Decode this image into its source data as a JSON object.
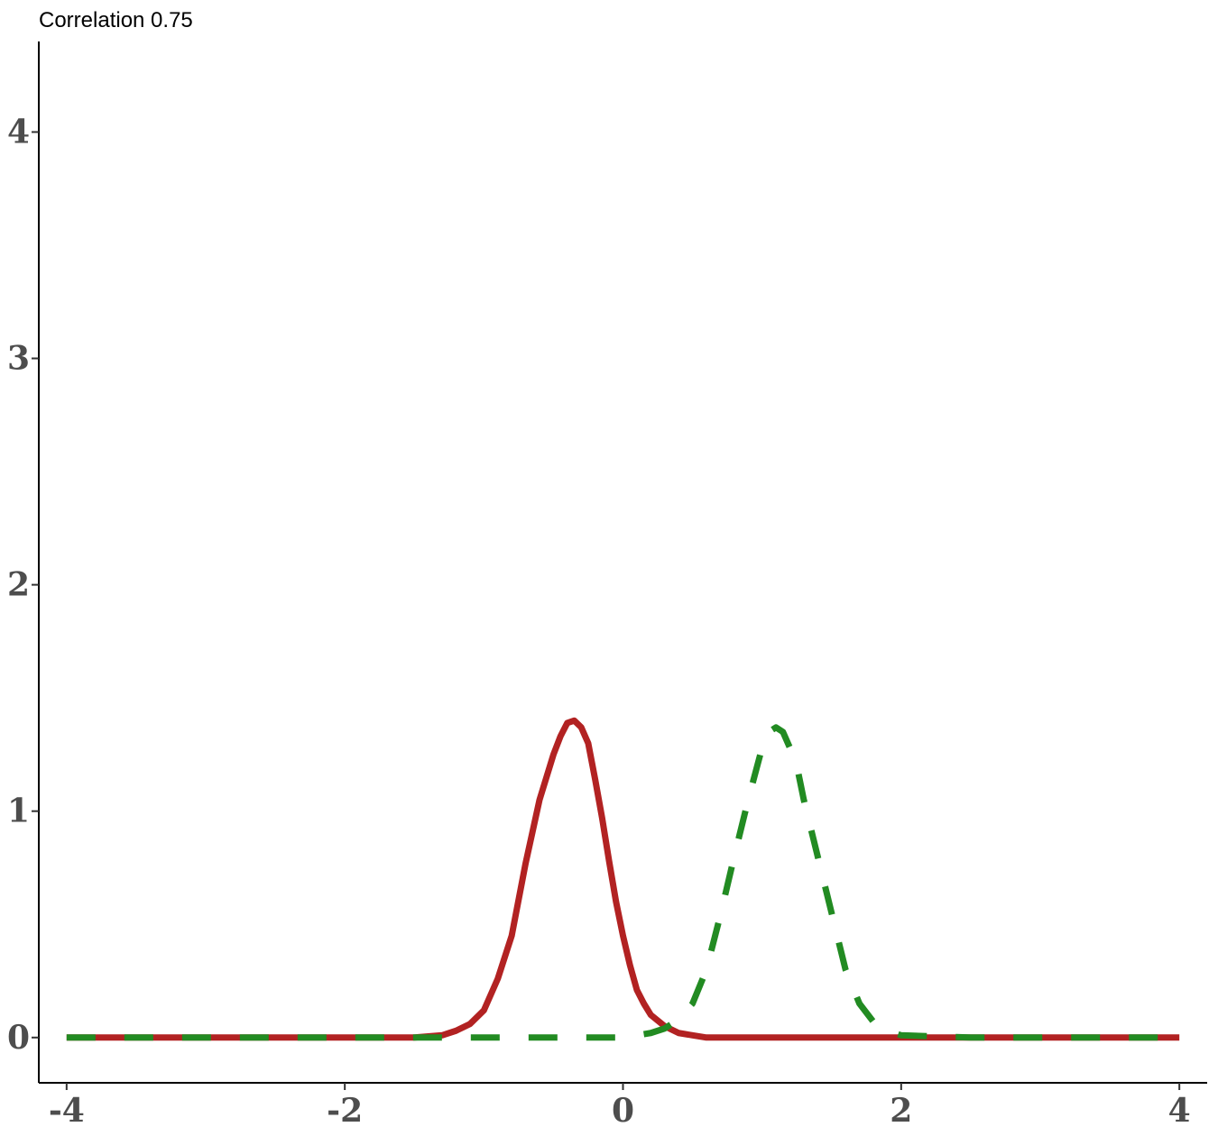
{
  "chart_data": {
    "type": "line",
    "title": "Correlation 0.75",
    "xlabel": "",
    "ylabel": "",
    "xlim": [
      -4.2,
      4.2
    ],
    "ylim": [
      -0.2,
      4.4
    ],
    "x_ticks": [
      -4,
      -2,
      0,
      2,
      4
    ],
    "x_tick_labels": [
      "-4",
      "-2",
      "0",
      "2",
      "4"
    ],
    "y_ticks": [
      0,
      1,
      2,
      3,
      4
    ],
    "y_tick_labels": [
      "0",
      "1",
      "2",
      "3",
      "4"
    ],
    "grid": false,
    "legend": "none",
    "series": [
      {
        "color": "#b22222",
        "line_style": "solid",
        "x": [
          -4.0,
          -3.0,
          -2.0,
          -1.5,
          -1.3,
          -1.2,
          -1.1,
          -1.0,
          -0.9,
          -0.8,
          -0.7,
          -0.6,
          -0.5,
          -0.45,
          -0.4,
          -0.35,
          -0.3,
          -0.25,
          -0.2,
          -0.15,
          -0.1,
          -0.05,
          0.0,
          0.05,
          0.1,
          0.15,
          0.2,
          0.3,
          0.4,
          0.5,
          0.6,
          0.7,
          0.8,
          1.0,
          2.0,
          3.0,
          4.0
        ],
        "y": [
          0.0,
          0.0,
          0.0,
          0.0,
          0.01,
          0.03,
          0.06,
          0.12,
          0.26,
          0.45,
          0.77,
          1.05,
          1.25,
          1.33,
          1.39,
          1.4,
          1.37,
          1.3,
          1.14,
          0.97,
          0.78,
          0.6,
          0.45,
          0.32,
          0.21,
          0.15,
          0.1,
          0.05,
          0.02,
          0.01,
          0.0,
          0.0,
          0.0,
          0.0,
          0.0,
          0.0,
          0.0
        ]
      },
      {
        "color": "#228b22",
        "line_style": "dashed",
        "x": [
          -4.0,
          -3.0,
          -2.0,
          -1.0,
          0.0,
          0.1,
          0.2,
          0.3,
          0.4,
          0.5,
          0.6,
          0.7,
          0.8,
          0.9,
          1.0,
          1.05,
          1.1,
          1.15,
          1.2,
          1.25,
          1.3,
          1.4,
          1.5,
          1.6,
          1.7,
          1.8,
          1.9,
          2.0,
          2.5,
          3.0,
          4.0
        ],
        "y": [
          0.0,
          0.0,
          0.0,
          0.0,
          0.0,
          0.01,
          0.02,
          0.04,
          0.08,
          0.15,
          0.3,
          0.54,
          0.8,
          1.05,
          1.28,
          1.35,
          1.37,
          1.35,
          1.28,
          1.2,
          1.05,
          0.8,
          0.55,
          0.3,
          0.15,
          0.07,
          0.03,
          0.01,
          0.0,
          0.0,
          0.0
        ]
      }
    ]
  }
}
